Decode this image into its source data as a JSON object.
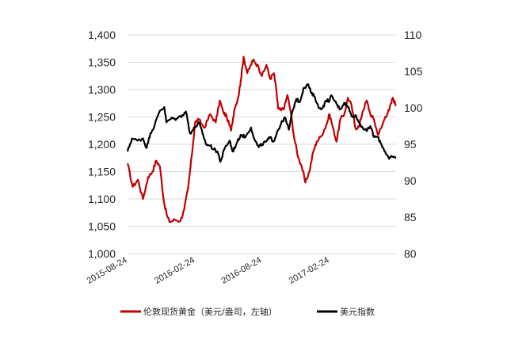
{
  "chart_data": {
    "type": "line",
    "x_start": "2015-08-24",
    "x_end": "2017-08-24",
    "x_tick_labels": [
      "2015-08-24",
      "2016-02-24",
      "2016-08-24",
      "2017-02-24"
    ],
    "y_left": {
      "range": [
        1000,
        1400
      ],
      "ticks": [
        "1,000",
        "1,050",
        "1,100",
        "1,150",
        "1,200",
        "1,250",
        "1,300",
        "1,350",
        "1,400"
      ]
    },
    "y_right": {
      "range": [
        80,
        110
      ],
      "ticks": [
        "80",
        "85",
        "90",
        "95",
        "100",
        "105",
        "110"
      ]
    },
    "grid": "horizontal",
    "legend_position": "bottom",
    "series": [
      {
        "name": "伦敦现货黄金（美元/盎司，左轴）",
        "axis": "left",
        "color": "#c00000",
        "points": [
          [
            "2015-08-24",
            1165
          ],
          [
            "2015-09-07",
            1122
          ],
          [
            "2015-09-21",
            1135
          ],
          [
            "2015-10-05",
            1100
          ],
          [
            "2015-10-19",
            1140
          ],
          [
            "2015-10-31",
            1150
          ],
          [
            "2015-11-10",
            1170
          ],
          [
            "2015-11-20",
            1160
          ],
          [
            "2015-12-01",
            1095
          ],
          [
            "2015-12-10",
            1068
          ],
          [
            "2015-12-17",
            1058
          ],
          [
            "2015-12-31",
            1062
          ],
          [
            "2016-01-15",
            1060
          ],
          [
            "2016-01-25",
            1080
          ],
          [
            "2016-02-05",
            1120
          ],
          [
            "2016-02-15",
            1180
          ],
          [
            "2016-02-24",
            1240
          ],
          [
            "2016-03-05",
            1245
          ],
          [
            "2016-03-20",
            1230
          ],
          [
            "2016-04-05",
            1255
          ],
          [
            "2016-04-20",
            1240
          ],
          [
            "2016-05-01",
            1280
          ],
          [
            "2016-05-10",
            1260
          ],
          [
            "2016-05-20",
            1250
          ],
          [
            "2016-06-01",
            1225
          ],
          [
            "2016-06-10",
            1265
          ],
          [
            "2016-06-20",
            1285
          ],
          [
            "2016-06-27",
            1315
          ],
          [
            "2016-07-05",
            1360
          ],
          [
            "2016-07-15",
            1330
          ],
          [
            "2016-07-25",
            1345
          ],
          [
            "2016-08-01",
            1355
          ],
          [
            "2016-08-15",
            1340
          ],
          [
            "2016-08-24",
            1325
          ],
          [
            "2016-09-05",
            1345
          ],
          [
            "2016-09-15",
            1320
          ],
          [
            "2016-09-25",
            1330
          ],
          [
            "2016-10-01",
            1305
          ],
          [
            "2016-10-07",
            1265
          ],
          [
            "2016-10-15",
            1262
          ],
          [
            "2016-10-24",
            1268
          ],
          [
            "2016-11-01",
            1290
          ],
          [
            "2016-11-10",
            1260
          ],
          [
            "2016-11-20",
            1210
          ],
          [
            "2016-12-01",
            1175
          ],
          [
            "2016-12-10",
            1160
          ],
          [
            "2016-12-20",
            1130
          ],
          [
            "2016-12-31",
            1150
          ],
          [
            "2017-01-10",
            1185
          ],
          [
            "2017-01-20",
            1205
          ],
          [
            "2017-02-01",
            1215
          ],
          [
            "2017-02-15",
            1235
          ],
          [
            "2017-02-24",
            1255
          ],
          [
            "2017-03-05",
            1230
          ],
          [
            "2017-03-15",
            1205
          ],
          [
            "2017-03-25",
            1245
          ],
          [
            "2017-04-05",
            1255
          ],
          [
            "2017-04-15",
            1285
          ],
          [
            "2017-04-25",
            1270
          ],
          [
            "2017-05-05",
            1230
          ],
          [
            "2017-05-15",
            1232
          ],
          [
            "2017-05-25",
            1260
          ],
          [
            "2017-06-05",
            1280
          ],
          [
            "2017-06-15",
            1255
          ],
          [
            "2017-06-25",
            1245
          ],
          [
            "2017-07-05",
            1218
          ],
          [
            "2017-07-15",
            1230
          ],
          [
            "2017-07-25",
            1250
          ],
          [
            "2017-08-05",
            1262
          ],
          [
            "2017-08-15",
            1285
          ],
          [
            "2017-08-24",
            1270
          ]
        ]
      },
      {
        "name": "美元指数",
        "axis": "right",
        "color": "#000000",
        "points": [
          [
            "2015-08-24",
            94.0
          ],
          [
            "2015-09-05",
            95.8
          ],
          [
            "2015-09-20",
            95.5
          ],
          [
            "2015-10-05",
            95.8
          ],
          [
            "2015-10-15",
            94.5
          ],
          [
            "2015-10-25",
            96.5
          ],
          [
            "2015-11-05",
            97.5
          ],
          [
            "2015-11-20",
            99.6
          ],
          [
            "2015-12-02",
            100.1
          ],
          [
            "2015-12-08",
            98.0
          ],
          [
            "2015-12-20",
            98.5
          ],
          [
            "2016-01-05",
            98.5
          ],
          [
            "2016-01-20",
            99.0
          ],
          [
            "2016-01-30",
            99.5
          ],
          [
            "2016-02-10",
            96.5
          ],
          [
            "2016-02-24",
            97.3
          ],
          [
            "2016-03-05",
            98.0
          ],
          [
            "2016-03-15",
            96.5
          ],
          [
            "2016-03-25",
            95.0
          ],
          [
            "2016-04-05",
            94.8
          ],
          [
            "2016-04-15",
            94.3
          ],
          [
            "2016-04-25",
            94.0
          ],
          [
            "2016-05-03",
            92.6
          ],
          [
            "2016-05-15",
            94.5
          ],
          [
            "2016-05-28",
            95.5
          ],
          [
            "2016-06-05",
            94.0
          ],
          [
            "2016-06-15",
            95.0
          ],
          [
            "2016-06-27",
            96.3
          ],
          [
            "2016-07-10",
            96.0
          ],
          [
            "2016-07-25",
            97.3
          ],
          [
            "2016-08-05",
            95.5
          ],
          [
            "2016-08-15",
            94.6
          ],
          [
            "2016-08-24",
            95.0
          ],
          [
            "2016-09-05",
            95.4
          ],
          [
            "2016-09-15",
            95.9
          ],
          [
            "2016-09-25",
            95.4
          ],
          [
            "2016-10-05",
            96.8
          ],
          [
            "2016-10-15",
            97.8
          ],
          [
            "2016-10-25",
            98.7
          ],
          [
            "2016-11-05",
            97.0
          ],
          [
            "2016-11-15",
            99.5
          ],
          [
            "2016-11-25",
            101.2
          ],
          [
            "2016-12-05",
            100.8
          ],
          [
            "2016-12-15",
            102.7
          ],
          [
            "2016-12-28",
            103.2
          ],
          [
            "2017-01-05",
            102.0
          ],
          [
            "2017-01-15",
            101.5
          ],
          [
            "2017-01-25",
            100.0
          ],
          [
            "2017-02-05",
            100.0
          ],
          [
            "2017-02-15",
            101.0
          ],
          [
            "2017-02-24",
            101.0
          ],
          [
            "2017-03-01",
            101.7
          ],
          [
            "2017-03-15",
            100.5
          ],
          [
            "2017-03-25",
            99.8
          ],
          [
            "2017-04-05",
            100.7
          ],
          [
            "2017-04-15",
            100.2
          ],
          [
            "2017-04-25",
            98.8
          ],
          [
            "2017-05-05",
            99.0
          ],
          [
            "2017-05-15",
            98.0
          ],
          [
            "2017-05-25",
            97.3
          ],
          [
            "2017-06-05",
            96.8
          ],
          [
            "2017-06-15",
            97.5
          ],
          [
            "2017-06-25",
            96.0
          ],
          [
            "2017-07-05",
            96.0
          ],
          [
            "2017-07-15",
            95.0
          ],
          [
            "2017-07-25",
            94.0
          ],
          [
            "2017-08-05",
            93.0
          ],
          [
            "2017-08-15",
            93.3
          ],
          [
            "2017-08-24",
            93.1
          ]
        ]
      }
    ]
  }
}
